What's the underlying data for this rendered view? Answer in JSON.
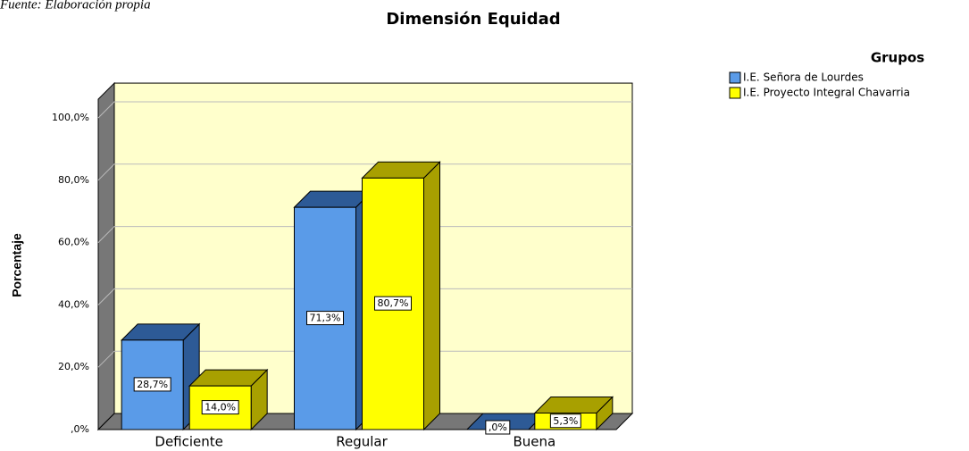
{
  "source": "Fuente: Elaboración propia",
  "chart_data": {
    "type": "bar3d",
    "title": "Dimensión Equidad",
    "ylabel": "Porcentaje",
    "categories": [
      "Deficiente",
      "Regular",
      "Buena"
    ],
    "legend_title": "Grupos",
    "series": [
      {
        "name": "I.E. Señora de Lourdes",
        "color": "#5a9be8",
        "values": [
          28.7,
          71.3,
          0
        ],
        "value_labels": [
          "28,7%",
          "71,3%",
          ",0%"
        ]
      },
      {
        "name": "I.E. Proyecto Integral Chavarria",
        "color": "#ffff00",
        "values": [
          14.0,
          80.7,
          5.3
        ],
        "value_labels": [
          "14,0%",
          "80,7%",
          "5,3%"
        ]
      }
    ],
    "ylim": [
      0,
      106
    ],
    "yticks": [
      {
        "value": 0,
        "label": ",0%"
      },
      {
        "value": 20,
        "label": "20,0%"
      },
      {
        "value": 40,
        "label": "40,0%"
      },
      {
        "value": 60,
        "label": "60,0%"
      },
      {
        "value": 80,
        "label": "80,0%"
      },
      {
        "value": 100,
        "label": "100,0%"
      }
    ],
    "grid": true
  }
}
